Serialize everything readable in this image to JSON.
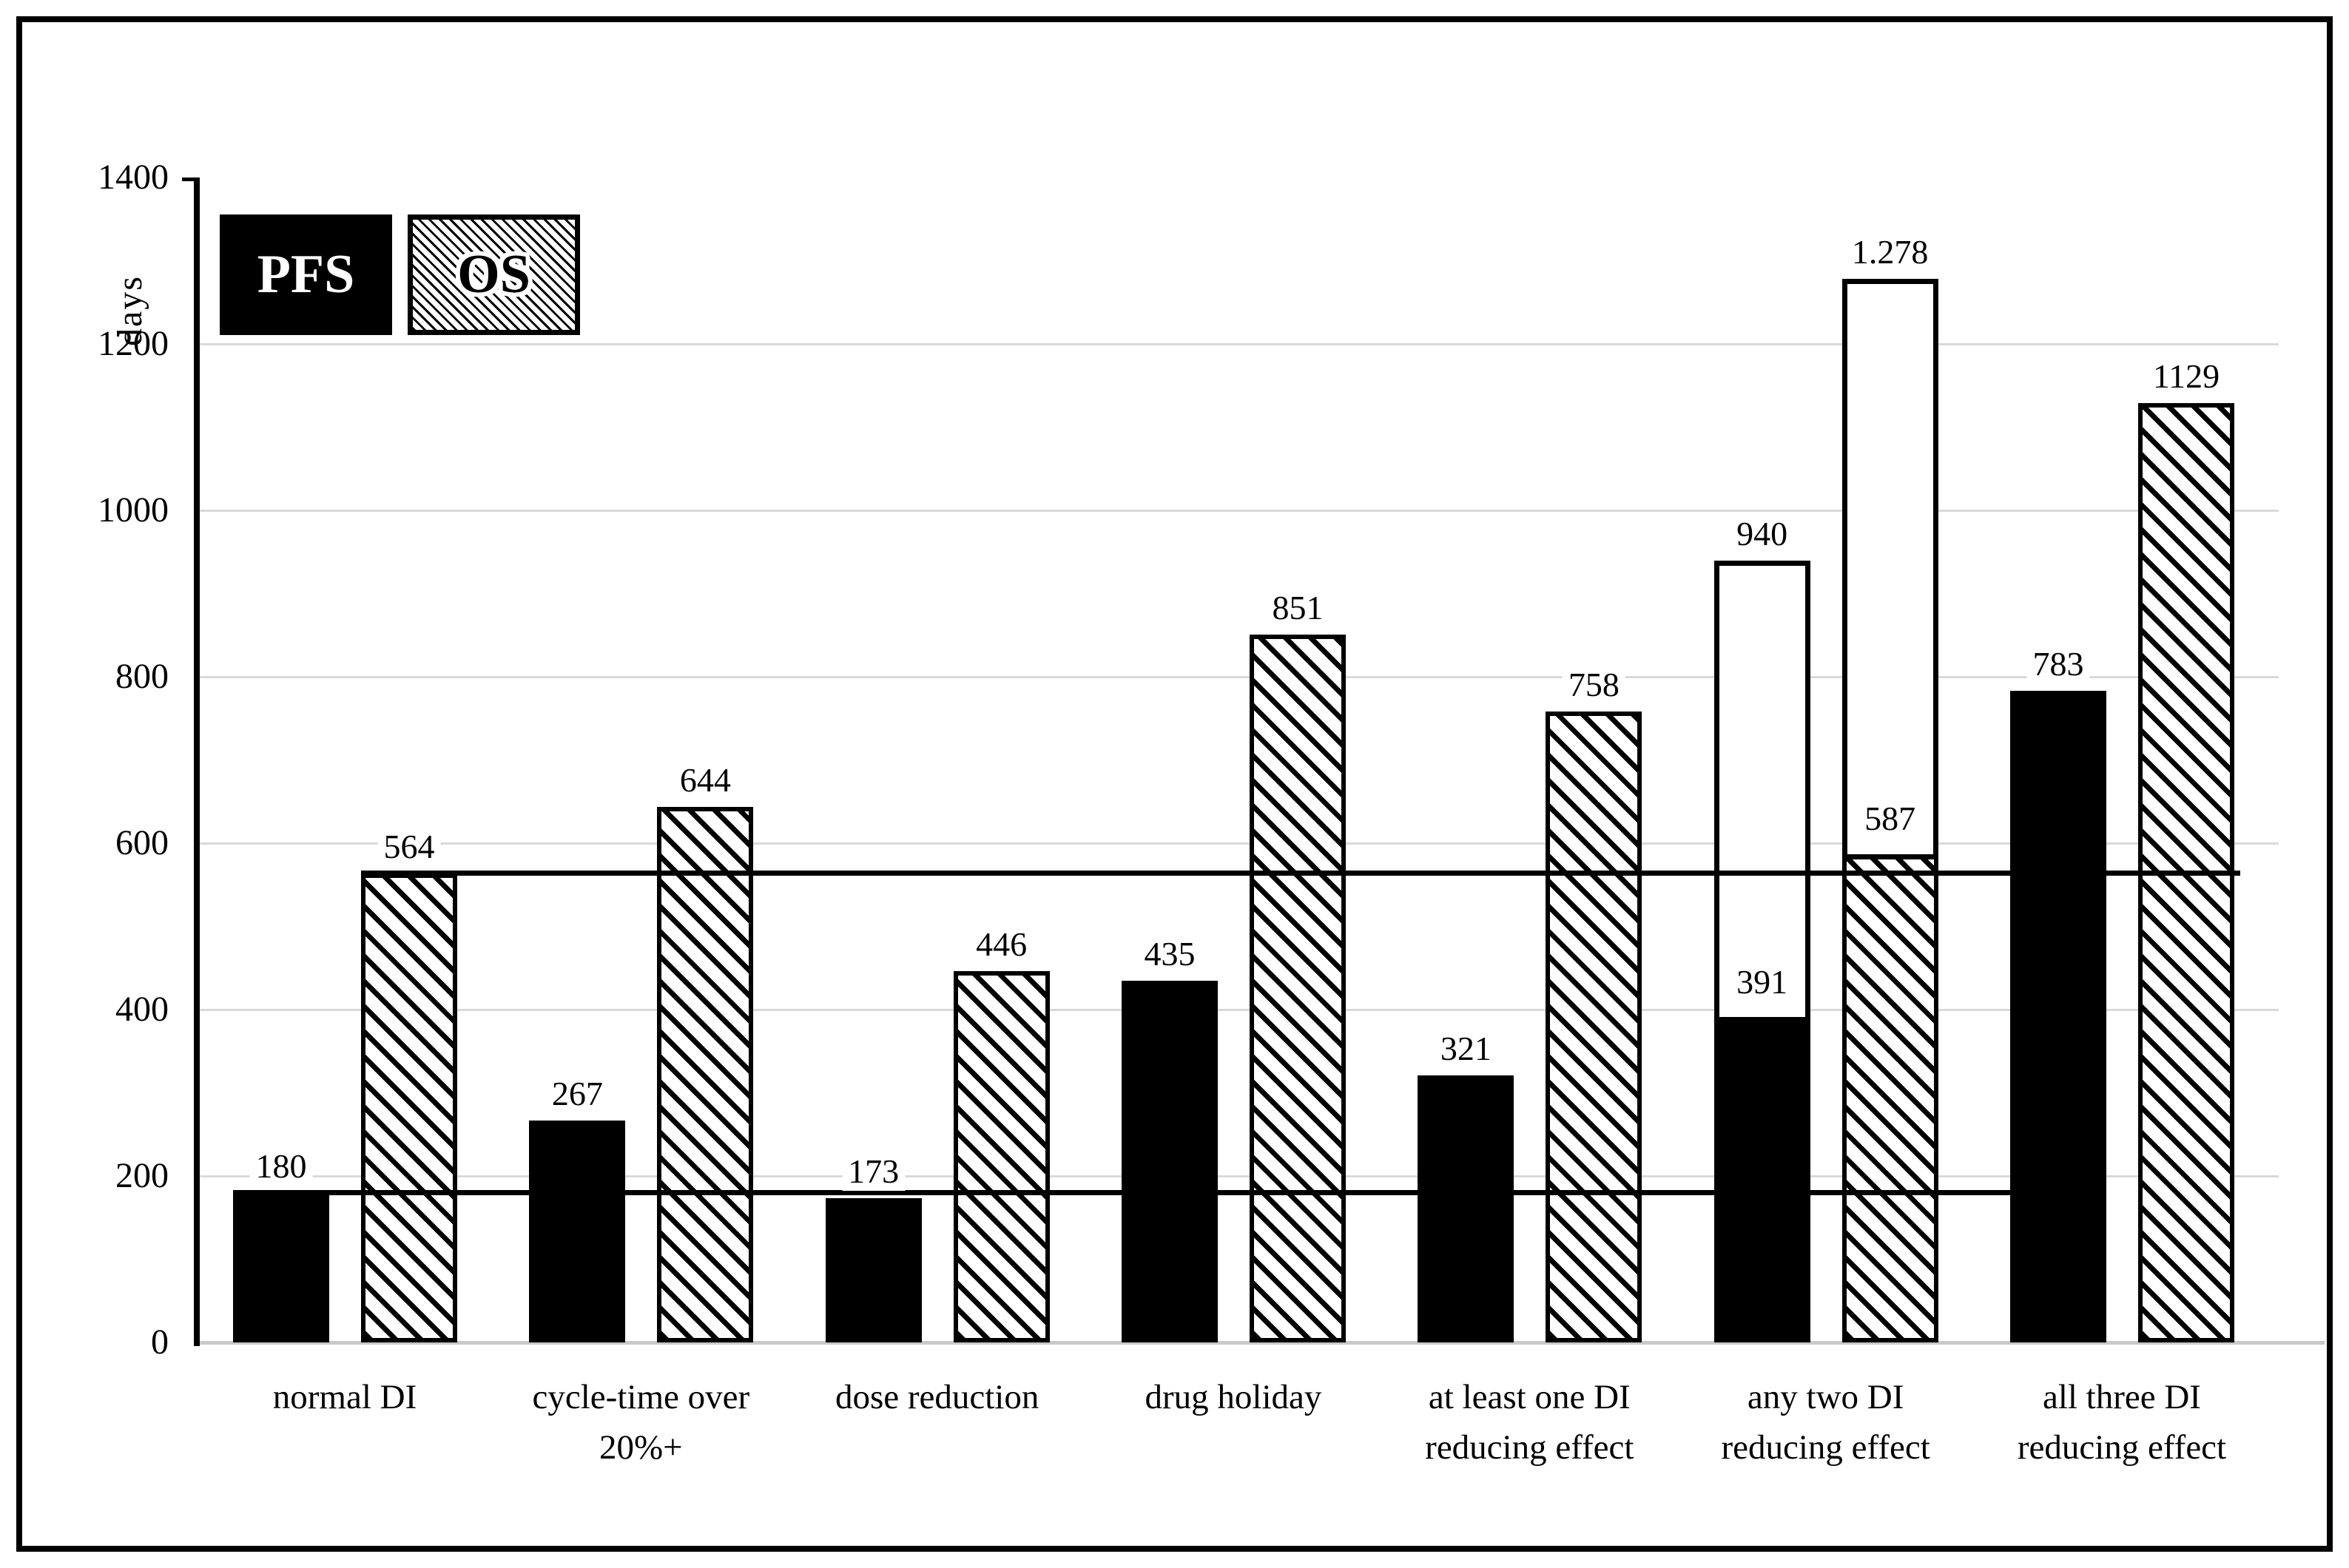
{
  "legend": {
    "items": [
      {
        "label": "PFS",
        "swatch": "solid-black"
      },
      {
        "label": "OS",
        "swatch": "diagonal-hatch"
      }
    ]
  },
  "y_axis": {
    "title": "days",
    "ticks": [
      "0",
      "200",
      "400",
      "600",
      "800",
      "1000",
      "1200",
      "1400"
    ]
  },
  "x_axis": {
    "category_lines": [
      [
        "normal DI"
      ],
      [
        "cycle-time over",
        "20%+"
      ],
      [
        "dose reduction"
      ],
      [
        "drug holiday"
      ],
      [
        "at least one DI",
        "reducing effect"
      ],
      [
        "any two DI",
        "reducing effect"
      ],
      [
        "all three DI",
        "reducing effect"
      ]
    ]
  },
  "chart_data": {
    "type": "bar",
    "title": "",
    "xlabel": "",
    "ylabel": "days",
    "ylim": [
      0,
      1400
    ],
    "yticks": [
      0,
      200,
      400,
      600,
      800,
      1000,
      1200,
      1400
    ],
    "grid": true,
    "legend_position": "top-left",
    "categories": [
      "normal DI",
      "cycle-time over 20%+",
      "dose reduction",
      "drug holiday",
      "at least one DI reducing effect",
      "any two DI reducing effect",
      "all three DI reducing effect"
    ],
    "series": [
      {
        "name": "PFS",
        "style": "solid-black",
        "values": [
          180,
          267,
          173,
          435,
          321,
          391,
          783
        ],
        "labels": [
          "180",
          "267",
          "173",
          "435",
          "321",
          "391",
          "783"
        ]
      },
      {
        "name": "OS",
        "style": "diagonal-hatch",
        "values": [
          564,
          644,
          446,
          851,
          758,
          587,
          1129
        ],
        "labels": [
          "564",
          "644",
          "446",
          "851",
          "758",
          "587",
          "1129"
        ]
      }
    ],
    "extension_bars": [
      {
        "series": "PFS",
        "category_index": 5,
        "from": 391,
        "to": 940,
        "label": "940",
        "fill": "white"
      },
      {
        "series": "OS",
        "category_index": 5,
        "from": 587,
        "to": 1278,
        "label": "1.278",
        "fill": "white"
      }
    ],
    "reference_lines": [
      {
        "value": 180,
        "series": "PFS",
        "from_category": "normal DI"
      },
      {
        "value": 564,
        "series": "OS",
        "from_category": "normal DI"
      }
    ],
    "colors": {
      "bar_fill": "#000000",
      "hatch_line": "#000000",
      "gridline": "#d9d9d9",
      "background": "#ffffff"
    }
  }
}
